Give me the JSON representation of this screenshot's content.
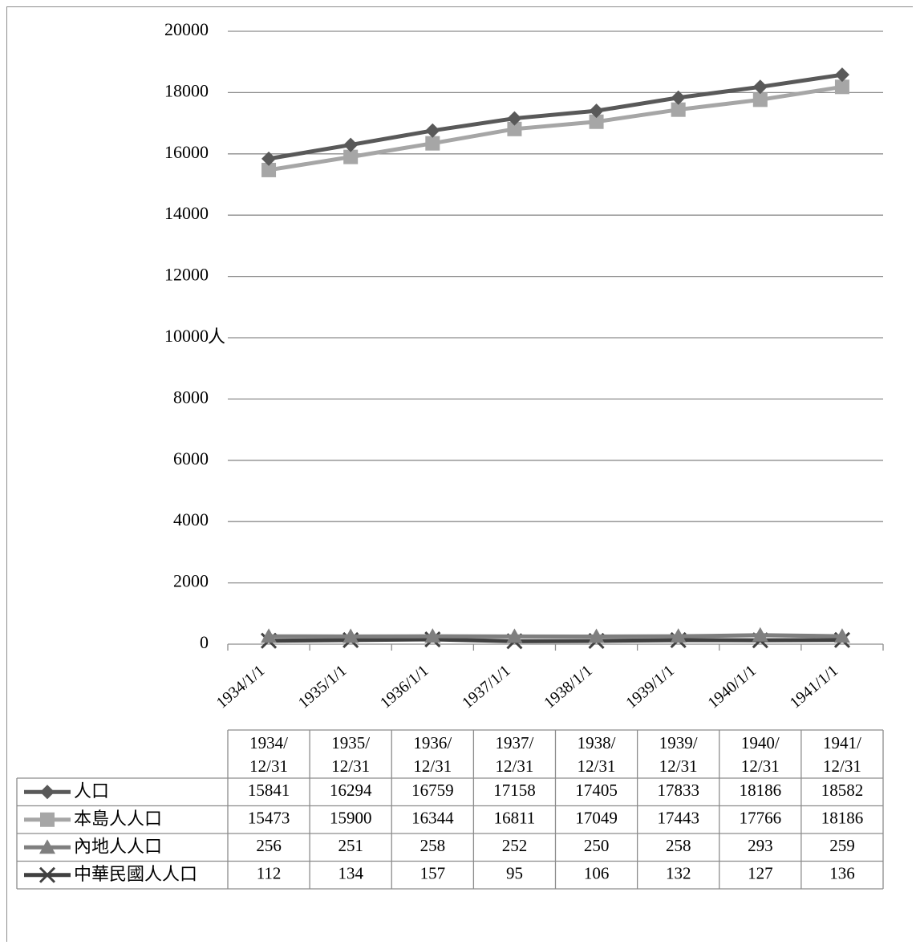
{
  "colors": {
    "series_1": "#595959",
    "series_2": "#a6a6a6",
    "series_3": "#7f7f7f",
    "series_4": "#404040",
    "grid": "#8c8c8c",
    "frame": "#8c8c8c"
  },
  "chart_data": {
    "type": "line",
    "ylabel": "人",
    "ylim": [
      0,
      20000
    ],
    "yticks": [
      "0",
      "2000",
      "4000",
      "6000",
      "8000",
      "10000",
      "12000",
      "14000",
      "16000",
      "18000",
      "20000"
    ],
    "x": [
      "1934/1/1",
      "1935/1/1",
      "1936/1/1",
      "1937/1/1",
      "1938/1/1",
      "1939/1/1",
      "1940/1/1",
      "1941/1/1"
    ],
    "grid": true,
    "legend": "data-table",
    "table_header": [
      [
        "1934/",
        "12/31"
      ],
      [
        "1935/",
        "12/31"
      ],
      [
        "1936/",
        "12/31"
      ],
      [
        "1937/",
        "12/31"
      ],
      [
        "1938/",
        "12/31"
      ],
      [
        "1939/",
        "12/31"
      ],
      [
        "1940/",
        "12/31"
      ],
      [
        "1941/",
        "12/31"
      ]
    ],
    "series": [
      {
        "name": "人口",
        "marker": "diamond",
        "values": [
          15841,
          16294,
          16759,
          17158,
          17405,
          17833,
          18186,
          18582
        ]
      },
      {
        "name": "本島人人口",
        "marker": "square",
        "values": [
          15473,
          15900,
          16344,
          16811,
          17049,
          17443,
          17766,
          18186
        ]
      },
      {
        "name": "內地人人口",
        "marker": "triangle",
        "values": [
          256,
          251,
          258,
          252,
          250,
          258,
          293,
          259
        ]
      },
      {
        "name": "中華民國人人口",
        "marker": "x",
        "values": [
          112,
          134,
          157,
          95,
          106,
          132,
          127,
          136
        ]
      }
    ]
  }
}
